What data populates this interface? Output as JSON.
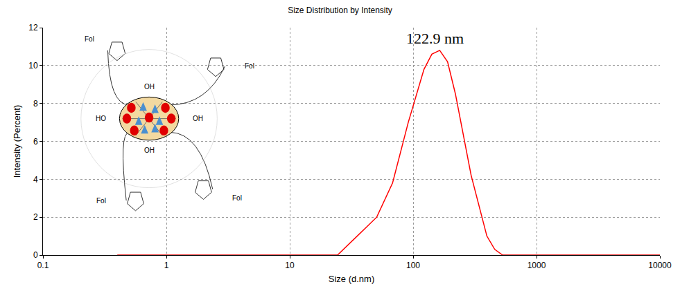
{
  "chart_data": {
    "type": "line",
    "title": "Size Distribution by Intensity",
    "x_label": "Size (d.nm)",
    "y_label": "Intensity (Percent)",
    "log": "x",
    "grid": true,
    "color": "#ff0000",
    "x": [
      0.4,
      1,
      10,
      20,
      24.4,
      50.7,
      68.1,
      91.3,
      122.4,
      141.8,
      164.2,
      190.1,
      220.2,
      295.3,
      396.1,
      458.7,
      531.2,
      1000,
      10000
    ],
    "values": [
      0,
      0,
      0,
      0,
      0,
      2.0,
      3.8,
      7.0,
      9.8,
      10.6,
      10.8,
      10.2,
      8.5,
      4.2,
      1.0,
      0.3,
      0,
      0,
      0
    ],
    "xlim": [
      0.1,
      10000
    ],
    "xticks": [
      0.1,
      1,
      10,
      100,
      1000,
      10000
    ],
    "ylim": [
      0,
      12
    ],
    "yticks": [
      0,
      2,
      4,
      6,
      8,
      10,
      12
    ],
    "annotations": [
      {
        "text": "122.9 nm",
        "x": 150,
        "y": 10.9
      }
    ],
    "inset": {
      "labels": [
        "OH",
        "HO",
        "OH",
        "OH",
        "Fol",
        "Fol",
        "Fol",
        "Fol"
      ]
    }
  }
}
